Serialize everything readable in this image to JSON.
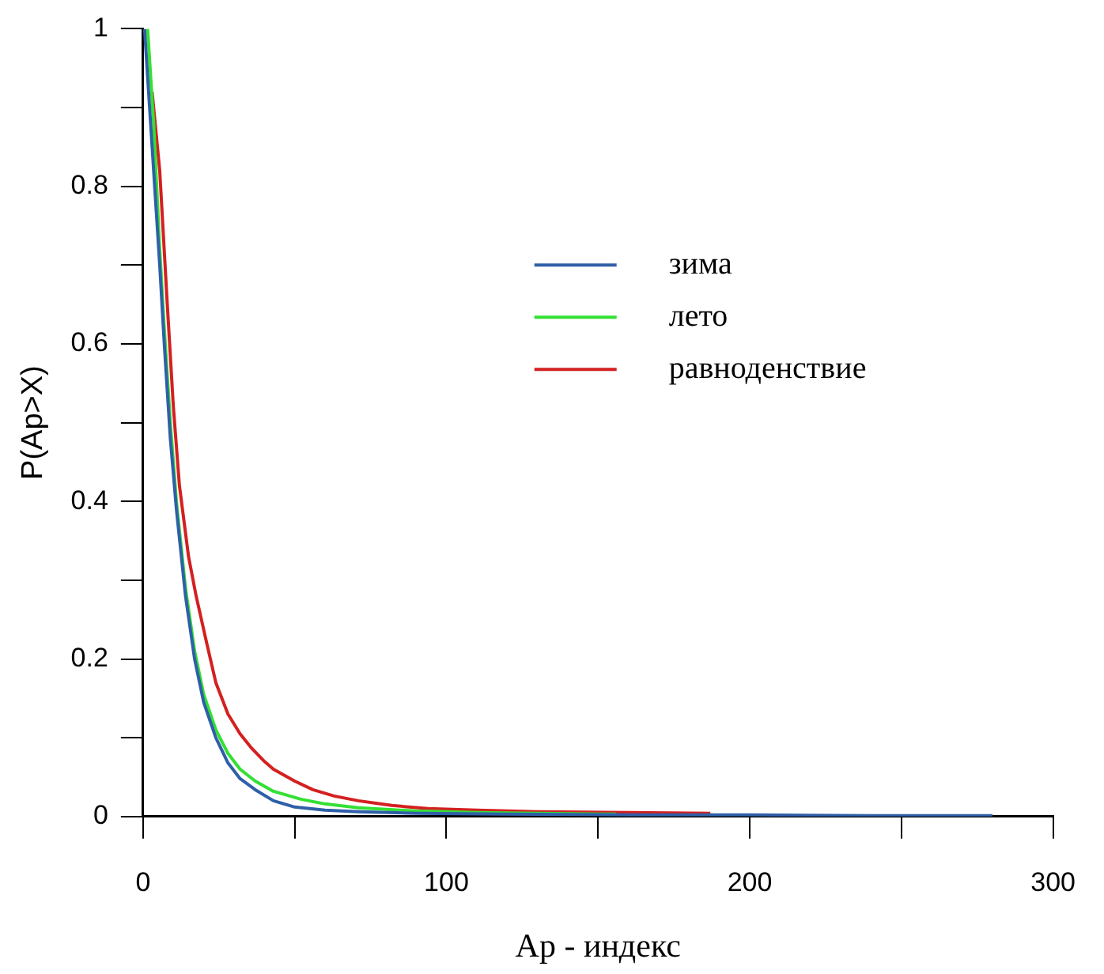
{
  "chart_data": {
    "type": "line",
    "xlabel": "Ap - индекс",
    "ylabel": "P(Ap>X)",
    "xlim": [
      0,
      300
    ],
    "xticks": [
      0,
      {
        "value": 50,
        "label": null
      },
      100,
      {
        "value": 150,
        "label": null
      },
      200,
      {
        "value": 250,
        "label": null
      },
      300
    ],
    "ylim": [
      0,
      1
    ],
    "yticks": [
      0,
      {
        "value": 0.1,
        "label": null
      },
      0.2,
      {
        "value": 0.3,
        "label": null
      },
      0.4,
      {
        "value": 0.5,
        "label": null
      },
      0.6,
      {
        "value": 0.7,
        "label": null
      },
      0.8,
      {
        "value": 0.9,
        "label": null
      },
      1
    ],
    "grid": false,
    "legend": "right",
    "marker": "none",
    "line_style": "solid",
    "series": [
      {
        "name": "зима",
        "color": "#2f5fa8",
        "x": [
          0.5,
          3,
          5.5,
          7,
          9,
          11,
          14,
          17,
          20,
          24,
          28,
          32,
          37,
          43,
          50,
          60,
          71,
          90,
          120,
          160,
          200,
          240,
          280
        ],
        "values": [
          1,
          0.85,
          0.7,
          0.6,
          0.48,
          0.39,
          0.28,
          0.2,
          0.145,
          0.1,
          0.068,
          0.048,
          0.034,
          0.02,
          0.012,
          0.008,
          0.006,
          0.004,
          0.003,
          0.002,
          0.002,
          0.001,
          0.001
        ]
      },
      {
        "name": "лето",
        "color": "#33e033",
        "x": [
          1.5,
          3.5,
          5.5,
          7,
          9,
          11,
          14,
          17,
          20,
          24,
          28,
          32,
          37,
          43,
          52,
          60,
          71,
          90,
          110,
          130,
          156
        ],
        "values": [
          1,
          0.88,
          0.72,
          0.62,
          0.5,
          0.4,
          0.29,
          0.21,
          0.155,
          0.11,
          0.08,
          0.06,
          0.045,
          0.032,
          0.022,
          0.016,
          0.011,
          0.007,
          0.005,
          0.004,
          0.003
        ]
      },
      {
        "name": "равноденствие",
        "color": "#d42020",
        "x": [
          3,
          5.5,
          8,
          10,
          12,
          15,
          17.5,
          21,
          24,
          28,
          32,
          35.5,
          40,
          43,
          50,
          56,
          63,
          71,
          82,
          94,
          110,
          130,
          160,
          187
        ],
        "values": [
          0.92,
          0.82,
          0.65,
          0.52,
          0.42,
          0.33,
          0.28,
          0.22,
          0.17,
          0.13,
          0.105,
          0.088,
          0.07,
          0.06,
          0.045,
          0.034,
          0.026,
          0.02,
          0.014,
          0.01,
          0.008,
          0.006,
          0.005,
          0.004
        ]
      }
    ]
  }
}
